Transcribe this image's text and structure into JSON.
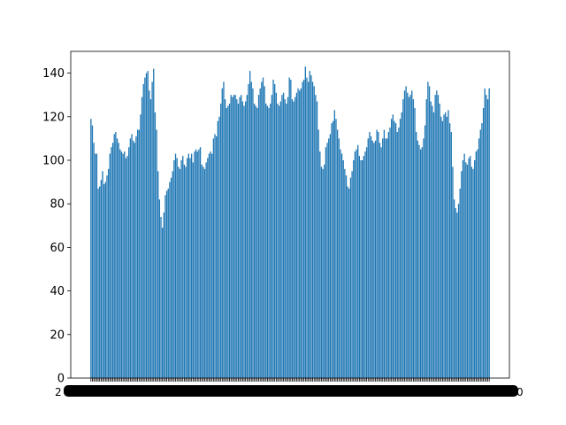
{
  "chart_data": {
    "type": "bar",
    "title": "",
    "xlabel": "",
    "ylabel": "",
    "ylim": [
      0,
      150
    ],
    "y_ticks": [
      0,
      20,
      40,
      60,
      80,
      100,
      120,
      140
    ],
    "grid": false,
    "legend": "none",
    "bar_color": "#1f77b4",
    "x_tick_labels_note": "x tick labels are illegibly overlapped (dense date labels) in the original",
    "values": [
      119,
      116,
      108,
      103,
      103,
      87,
      88,
      91,
      95,
      89,
      90,
      93,
      96,
      103,
      106,
      108,
      112,
      113,
      110,
      108,
      105,
      104,
      103,
      104,
      101,
      102,
      106,
      110,
      112,
      109,
      108,
      111,
      114,
      114,
      121,
      129,
      135,
      138,
      140,
      141,
      132,
      128,
      136,
      142,
      122,
      114,
      95,
      82,
      74,
      69,
      76,
      84,
      86,
      87,
      90,
      92,
      95,
      100,
      103,
      101,
      97,
      96,
      100,
      102,
      98,
      97,
      101,
      103,
      101,
      103,
      99,
      104,
      105,
      104,
      105,
      106,
      98,
      97,
      96,
      99,
      101,
      103,
      104,
      103,
      110,
      112,
      111,
      118,
      120,
      126,
      133,
      136,
      128,
      124,
      125,
      126,
      130,
      129,
      130,
      130,
      128,
      126,
      129,
      130,
      127,
      125,
      127,
      130,
      135,
      141,
      136,
      133,
      126,
      125,
      124,
      130,
      133,
      136,
      138,
      134,
      126,
      125,
      124,
      126,
      130,
      137,
      135,
      131,
      126,
      125,
      127,
      130,
      131,
      128,
      126,
      129,
      138,
      137,
      128,
      127,
      129,
      131,
      133,
      132,
      133,
      136,
      137,
      143,
      138,
      136,
      141,
      139,
      136,
      134,
      130,
      127,
      114,
      104,
      97,
      96,
      98,
      106,
      108,
      110,
      112,
      117,
      118,
      123,
      119,
      114,
      110,
      105,
      103,
      100,
      96,
      93,
      88,
      87,
      92,
      95,
      100,
      104,
      105,
      107,
      102,
      100,
      100,
      102,
      104,
      106,
      110,
      113,
      111,
      109,
      108,
      109,
      114,
      113,
      108,
      106,
      110,
      114,
      110,
      110,
      113,
      115,
      119,
      121,
      118,
      117,
      113,
      115,
      119,
      122,
      128,
      132,
      134,
      131,
      129,
      130,
      132,
      128,
      124,
      113,
      109,
      107,
      105,
      106,
      110,
      116,
      128,
      136,
      134,
      127,
      125,
      122,
      130,
      132,
      130,
      126,
      120,
      118,
      121,
      122,
      120,
      123,
      117,
      113,
      97,
      82,
      78,
      76,
      80,
      87,
      95,
      100,
      103,
      99,
      98,
      101,
      102,
      97,
      96,
      100,
      104,
      105,
      110,
      114,
      117,
      124,
      133,
      130,
      128,
      133
    ]
  }
}
